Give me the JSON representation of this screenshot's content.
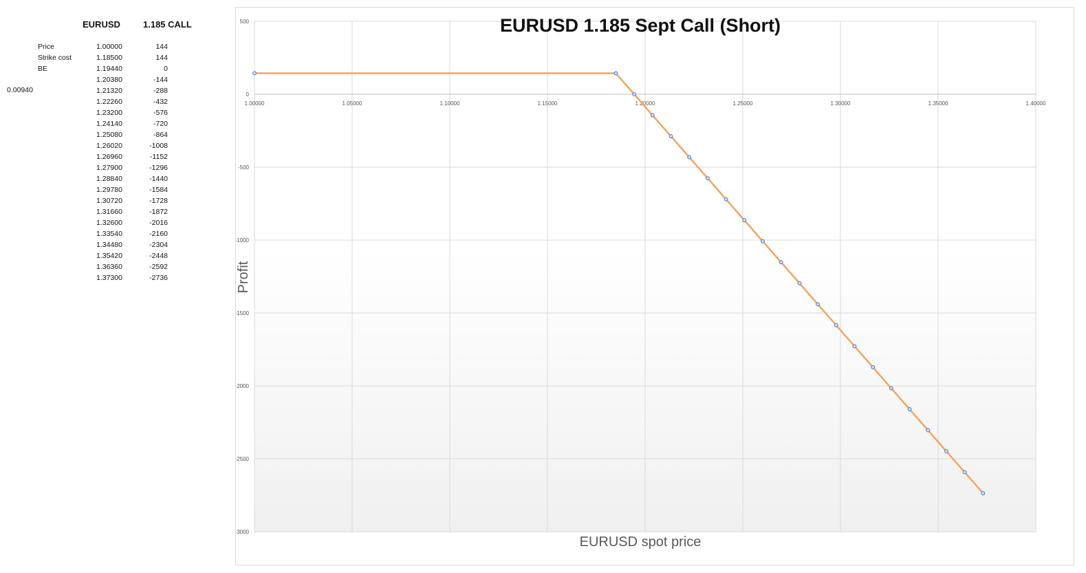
{
  "sheet": {
    "header_pair": "EURUSD",
    "header_call": "1.185 CALL",
    "side_value": "0.00940",
    "rows": [
      {
        "label": "Price",
        "price": "1.00000",
        "profit": "144"
      },
      {
        "label": "Strike cost",
        "price": "1.18500",
        "profit": "144"
      },
      {
        "label": "BE",
        "price": "1.19440",
        "profit": "0"
      },
      {
        "label": "",
        "price": "1.20380",
        "profit": "-144"
      },
      {
        "label": "",
        "price": "1.21320",
        "profit": "-288"
      },
      {
        "label": "",
        "price": "1.22260",
        "profit": "-432"
      },
      {
        "label": "",
        "price": "1.23200",
        "profit": "-576"
      },
      {
        "label": "",
        "price": "1.24140",
        "profit": "-720"
      },
      {
        "label": "",
        "price": "1.25080",
        "profit": "-864"
      },
      {
        "label": "",
        "price": "1.26020",
        "profit": "-1008"
      },
      {
        "label": "",
        "price": "1.26960",
        "profit": "-1152"
      },
      {
        "label": "",
        "price": "1.27900",
        "profit": "-1296"
      },
      {
        "label": "",
        "price": "1.28840",
        "profit": "-1440"
      },
      {
        "label": "",
        "price": "1.29780",
        "profit": "-1584"
      },
      {
        "label": "",
        "price": "1.30720",
        "profit": "-1728"
      },
      {
        "label": "",
        "price": "1.31660",
        "profit": "-1872"
      },
      {
        "label": "",
        "price": "1.32600",
        "profit": "-2016"
      },
      {
        "label": "",
        "price": "1.33540",
        "profit": "-2160"
      },
      {
        "label": "",
        "price": "1.34480",
        "profit": "-2304"
      },
      {
        "label": "",
        "price": "1.35420",
        "profit": "-2448"
      },
      {
        "label": "",
        "price": "1.36360",
        "profit": "-2592"
      },
      {
        "label": "",
        "price": "1.37300",
        "profit": "-2736"
      }
    ]
  },
  "chart_data": {
    "type": "scatter",
    "title": "EURUSD 1.185 Sept Call (Short)",
    "xlabel": "EURUSD spot price",
    "ylabel": "Profit",
    "xlim": [
      1.0,
      1.4
    ],
    "ylim": [
      -3000,
      500
    ],
    "x_ticks": [
      "1.00000",
      "1.05000",
      "1.10000",
      "1.15000",
      "1.20000",
      "1.25000",
      "1.30000",
      "1.35000",
      "1.40000"
    ],
    "y_ticks": [
      "500",
      "0",
      "-500",
      "-1000",
      "-1500",
      "-2000",
      "-2500",
      "-3000"
    ],
    "x_axis_at_y": 0,
    "grid": true,
    "line_color": "#f4a460",
    "marker_color": "#4472c4",
    "series": [
      {
        "x": [
          1.0,
          1.185,
          1.1944,
          1.2038,
          1.2132,
          1.2226,
          1.232,
          1.2414,
          1.2508,
          1.2602,
          1.2696,
          1.279,
          1.2884,
          1.2978,
          1.3072,
          1.3166,
          1.326,
          1.3354,
          1.3448,
          1.3542,
          1.3636,
          1.373
        ],
        "y": [
          144,
          144,
          0,
          -144,
          -288,
          -432,
          -576,
          -720,
          -864,
          -1008,
          -1152,
          -1296,
          -1440,
          -1584,
          -1728,
          -1872,
          -2016,
          -2160,
          -2304,
          -2448,
          -2592,
          -2736
        ]
      }
    ]
  }
}
